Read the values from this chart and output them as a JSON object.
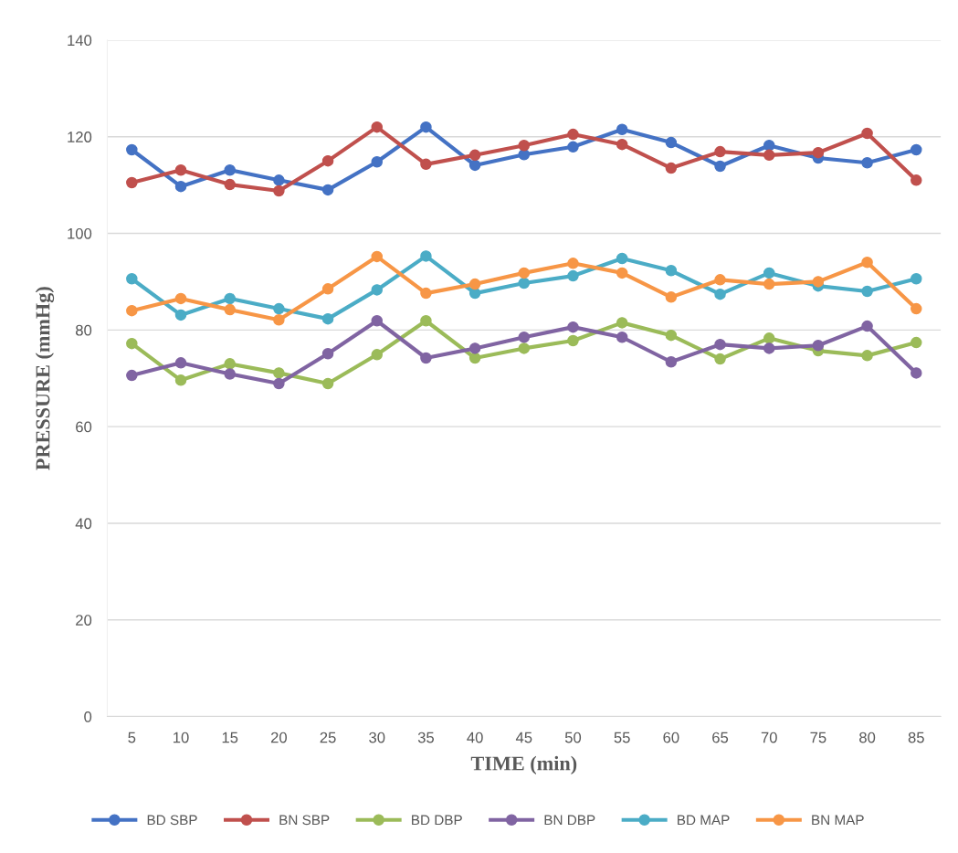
{
  "chart_data": {
    "type": "line",
    "xlabel": "TIME (min)",
    "ylabel": "PRESSURE (mmHg)",
    "categories": [
      "5",
      "10",
      "15",
      "20",
      "25",
      "30",
      "35",
      "40",
      "45",
      "50",
      "55",
      "60",
      "65",
      "70",
      "75",
      "80",
      "85"
    ],
    "ylim": [
      0,
      140
    ],
    "yticks": [
      0,
      20,
      40,
      60,
      80,
      100,
      120,
      140
    ],
    "grid": "y",
    "legend": "bottom",
    "marker": "circle",
    "line_style": "solid",
    "series": [
      {
        "name": "BD SBP",
        "color": "#4472c4",
        "values": [
          117.3,
          109.7,
          113.1,
          111.0,
          109.0,
          114.8,
          122.0,
          114.1,
          116.3,
          117.9,
          121.5,
          118.8,
          113.9,
          118.2,
          115.6,
          114.6,
          117.3
        ]
      },
      {
        "name": "BN SBP",
        "color": "#c0504d",
        "values": [
          110.5,
          113.1,
          110.1,
          108.8,
          115.0,
          122.0,
          114.3,
          116.2,
          118.2,
          120.5,
          118.4,
          113.5,
          116.9,
          116.2,
          116.7,
          120.7,
          111.0
        ]
      },
      {
        "name": "BD DBP",
        "color": "#9bbb59",
        "values": [
          77.2,
          69.6,
          73.0,
          71.1,
          68.9,
          74.9,
          81.9,
          74.2,
          76.2,
          77.8,
          81.5,
          78.9,
          74.0,
          78.3,
          75.7,
          74.7,
          77.4
        ]
      },
      {
        "name": "BN DBP",
        "color": "#8064a2",
        "values": [
          70.6,
          73.2,
          70.9,
          68.9,
          75.1,
          81.9,
          74.2,
          76.2,
          78.5,
          80.6,
          78.5,
          73.4,
          77.0,
          76.2,
          76.8,
          80.8,
          71.1
        ]
      },
      {
        "name": "BD MAP",
        "color": "#4bacc6",
        "values": [
          90.6,
          83.1,
          86.5,
          84.4,
          82.3,
          88.3,
          95.3,
          87.6,
          89.7,
          91.2,
          94.8,
          92.3,
          87.4,
          91.8,
          89.1,
          88.0,
          90.6
        ]
      },
      {
        "name": "BN MAP",
        "color": "#f79646",
        "values": [
          84.0,
          86.5,
          84.2,
          82.1,
          88.5,
          95.2,
          87.6,
          89.5,
          91.8,
          93.8,
          91.8,
          86.8,
          90.4,
          89.5,
          90.0,
          94.0,
          84.4
        ]
      }
    ]
  }
}
